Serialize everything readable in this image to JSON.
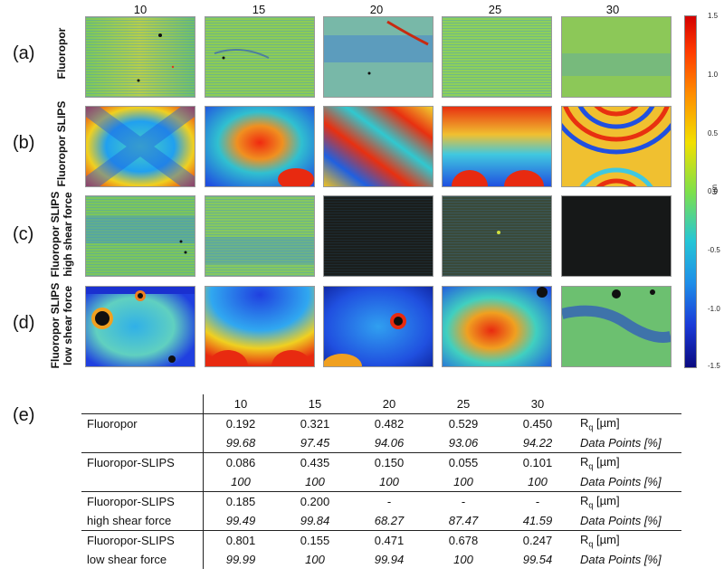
{
  "figure": {
    "columns": [
      "10",
      "15",
      "20",
      "25",
      "30"
    ],
    "rows": [
      {
        "letter": "(a)",
        "label_lines": [
          "Fluoropor"
        ]
      },
      {
        "letter": "(b)",
        "label_lines": [
          "Fluoropor SLIPS"
        ]
      },
      {
        "letter": "(c)",
        "label_lines": [
          "Fluoropor SLIPS",
          "high shear force"
        ]
      },
      {
        "letter": "(d)",
        "label_lines": [
          "Fluoropor SLIPS",
          "low shear force"
        ]
      }
    ],
    "colorbar": {
      "ticks": [
        "1.5",
        "1.0",
        "0.5",
        "0.0",
        "-0.5",
        "-1.0",
        "-1.5"
      ],
      "unit": "um",
      "range": [
        -1.5,
        1.5
      ]
    }
  },
  "table": {
    "letter": "(e)",
    "header": [
      "",
      "10",
      "15",
      "20",
      "25",
      "30",
      ""
    ],
    "rows": [
      {
        "cells": [
          "Fluoropor",
          "0.192",
          "0.321",
          "0.482",
          "0.529",
          "0.450",
          "Rq [µm]"
        ],
        "italic": false
      },
      {
        "cells": [
          "",
          "99.68",
          "97.45",
          "94.06",
          "93.06",
          "94.22",
          "Data Points [%]"
        ],
        "italic": true
      },
      {
        "cells": [
          "Fluoropor-SLIPS",
          "0.086",
          "0.435",
          "0.150",
          "0.055",
          "0.101",
          "Rq [µm]"
        ],
        "italic": false
      },
      {
        "cells": [
          "",
          "100",
          "100",
          "100",
          "100",
          "100",
          "Data Points [%]"
        ],
        "italic": true
      },
      {
        "cells": [
          "Fluoropor-SLIPS",
          "0.185",
          "0.200",
          "-",
          "-",
          "-",
          "Rq [µm]"
        ],
        "italic": false
      },
      {
        "cells": [
          "high shear force",
          "99.49",
          "99.84",
          "68.27",
          "87.47",
          "41.59",
          "Data Points [%]"
        ],
        "italic": true
      },
      {
        "cells": [
          "Fluoropor-SLIPS",
          "0.801",
          "0.155",
          "0.471",
          "0.678",
          "0.247",
          "Rq [µm]"
        ],
        "italic": false
      },
      {
        "cells": [
          "low shear force",
          "99.99",
          "100",
          "99.94",
          "100",
          "99.54",
          "Data Points [%]"
        ],
        "italic": true
      }
    ]
  }
}
